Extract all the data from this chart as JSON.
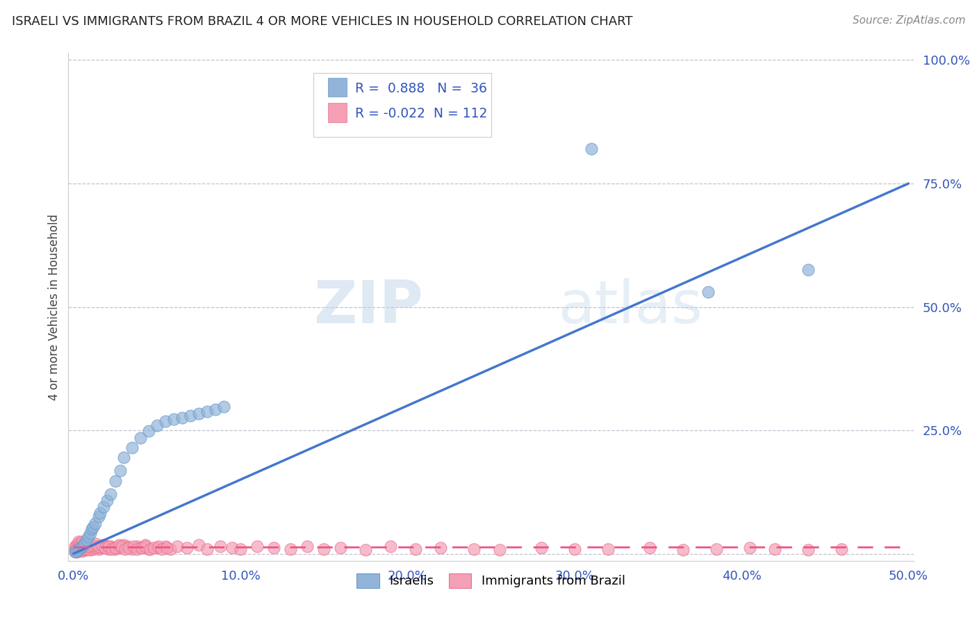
{
  "title": "ISRAELI VS IMMIGRANTS FROM BRAZIL 4 OR MORE VEHICLES IN HOUSEHOLD CORRELATION CHART",
  "source": "Source: ZipAtlas.com",
  "ylabel": "4 or more Vehicles in Household",
  "R1": 0.888,
  "N1": 36,
  "R2": -0.022,
  "N2": 112,
  "blue_color": "#92B4D8",
  "blue_edge_color": "#6699CC",
  "pink_color": "#F4A0B5",
  "pink_edge_color": "#E87090",
  "blue_line_color": "#4477CC",
  "pink_line_color": "#EE5588",
  "background_color": "#FFFFFF",
  "watermark_zip": "ZIP",
  "watermark_atlas": "atlas",
  "legend_label1": "Israelis",
  "legend_label2": "Immigrants from Brazil",
  "israeli_x": [
    0.001,
    0.002,
    0.003,
    0.004,
    0.005,
    0.006,
    0.007,
    0.008,
    0.009,
    0.01,
    0.011,
    0.012,
    0.013,
    0.015,
    0.016,
    0.018,
    0.02,
    0.022,
    0.025,
    0.028,
    0.03,
    0.035,
    0.04,
    0.045,
    0.05,
    0.055,
    0.06,
    0.065,
    0.07,
    0.075,
    0.08,
    0.085,
    0.09,
    0.31,
    0.38,
    0.44
  ],
  "israeli_y": [
    0.003,
    0.005,
    0.008,
    0.012,
    0.015,
    0.018,
    0.022,
    0.028,
    0.035,
    0.042,
    0.05,
    0.055,
    0.062,
    0.075,
    0.082,
    0.095,
    0.108,
    0.12,
    0.148,
    0.168,
    0.195,
    0.215,
    0.235,
    0.248,
    0.26,
    0.268,
    0.272,
    0.276,
    0.28,
    0.284,
    0.288,
    0.292,
    0.298,
    0.82,
    0.53,
    0.575
  ],
  "brazil_x": [
    0.001,
    0.001,
    0.001,
    0.002,
    0.002,
    0.002,
    0.002,
    0.003,
    0.003,
    0.003,
    0.003,
    0.003,
    0.004,
    0.004,
    0.004,
    0.004,
    0.005,
    0.005,
    0.005,
    0.005,
    0.006,
    0.006,
    0.006,
    0.007,
    0.007,
    0.008,
    0.008,
    0.009,
    0.009,
    0.01,
    0.01,
    0.011,
    0.011,
    0.012,
    0.012,
    0.013,
    0.014,
    0.015,
    0.016,
    0.017,
    0.018,
    0.019,
    0.02,
    0.021,
    0.022,
    0.024,
    0.025,
    0.027,
    0.028,
    0.03,
    0.032,
    0.035,
    0.038,
    0.04,
    0.043,
    0.045,
    0.05,
    0.055,
    0.058,
    0.062,
    0.068,
    0.075,
    0.08,
    0.088,
    0.095,
    0.1,
    0.11,
    0.12,
    0.13,
    0.14,
    0.15,
    0.16,
    0.175,
    0.19,
    0.205,
    0.22,
    0.24,
    0.255,
    0.28,
    0.3,
    0.32,
    0.345,
    0.365,
    0.385,
    0.405,
    0.42,
    0.44,
    0.46,
    0.005,
    0.007,
    0.009,
    0.011,
    0.013,
    0.015,
    0.017,
    0.019,
    0.021,
    0.023,
    0.025,
    0.027,
    0.029,
    0.031,
    0.033,
    0.036,
    0.038,
    0.041,
    0.043,
    0.046,
    0.048,
    0.051,
    0.053,
    0.056
  ],
  "brazil_y": [
    0.005,
    0.01,
    0.015,
    0.003,
    0.008,
    0.012,
    0.018,
    0.005,
    0.01,
    0.015,
    0.02,
    0.025,
    0.008,
    0.012,
    0.018,
    0.022,
    0.005,
    0.01,
    0.015,
    0.02,
    0.008,
    0.012,
    0.018,
    0.01,
    0.015,
    0.008,
    0.015,
    0.01,
    0.018,
    0.008,
    0.015,
    0.012,
    0.018,
    0.01,
    0.015,
    0.012,
    0.015,
    0.01,
    0.012,
    0.015,
    0.018,
    0.012,
    0.015,
    0.01,
    0.015,
    0.012,
    0.01,
    0.015,
    0.012,
    0.018,
    0.015,
    0.01,
    0.015,
    0.012,
    0.018,
    0.01,
    0.012,
    0.015,
    0.01,
    0.015,
    0.012,
    0.018,
    0.01,
    0.015,
    0.012,
    0.01,
    0.015,
    0.012,
    0.01,
    0.015,
    0.01,
    0.012,
    0.008,
    0.015,
    0.01,
    0.012,
    0.01,
    0.008,
    0.012,
    0.01,
    0.01,
    0.012,
    0.008,
    0.01,
    0.012,
    0.01,
    0.008,
    0.01,
    0.025,
    0.02,
    0.015,
    0.018,
    0.02,
    0.015,
    0.018,
    0.012,
    0.015,
    0.01,
    0.012,
    0.018,
    0.015,
    0.01,
    0.012,
    0.015,
    0.01,
    0.012,
    0.015,
    0.01,
    0.012,
    0.015,
    0.01,
    0.012
  ],
  "blue_line_x": [
    0.0,
    0.5
  ],
  "blue_line_y": [
    0.0,
    0.75
  ],
  "pink_line_x": [
    0.0,
    0.5
  ],
  "pink_line_y": [
    0.013,
    0.013
  ],
  "xlim": [
    -0.003,
    0.503
  ],
  "ylim": [
    -0.015,
    1.015
  ],
  "xticks": [
    0.0,
    0.1,
    0.2,
    0.3,
    0.4,
    0.5
  ],
  "yticks": [
    0.0,
    0.25,
    0.5,
    0.75,
    1.0
  ],
  "xticklabels": [
    "0.0%",
    "10.0%",
    "20.0%",
    "30.0%",
    "40.0%",
    "50.0%"
  ],
  "yticklabels": [
    "",
    "25.0%",
    "50.0%",
    "75.0%",
    "100.0%"
  ]
}
